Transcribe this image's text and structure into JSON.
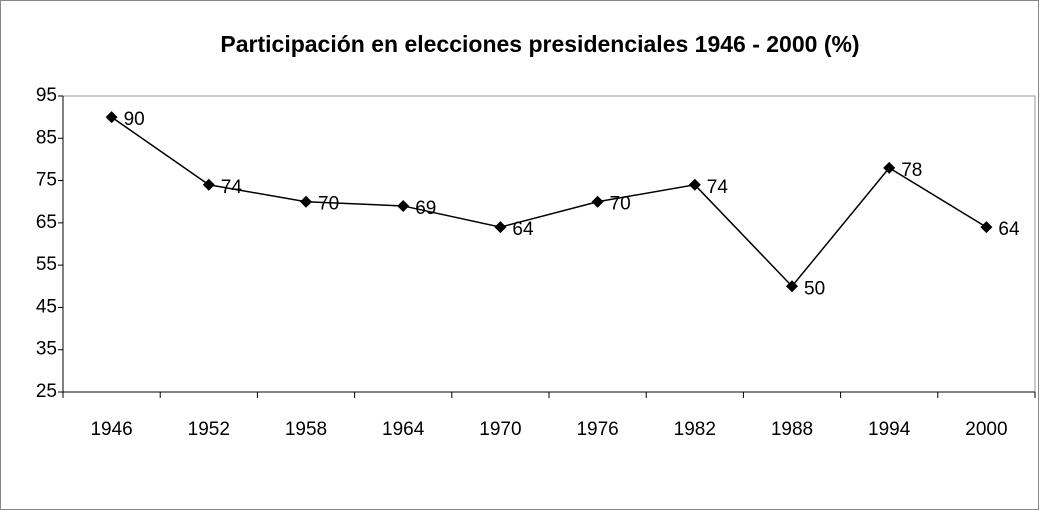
{
  "chart_data": {
    "type": "line",
    "title": "Participación en elecciones presidenciales 1946 - 2000 (%)",
    "categories": [
      "1946",
      "1952",
      "1958",
      "1964",
      "1970",
      "1976",
      "1982",
      "1988",
      "1994",
      "2000"
    ],
    "values": [
      90,
      74,
      70,
      69,
      64,
      70,
      74,
      50,
      78,
      64
    ],
    "color": "#000000",
    "ylim": [
      25,
      95
    ],
    "yticks": [
      25,
      35,
      45,
      55,
      65,
      75,
      85,
      95
    ],
    "grid": false
  }
}
